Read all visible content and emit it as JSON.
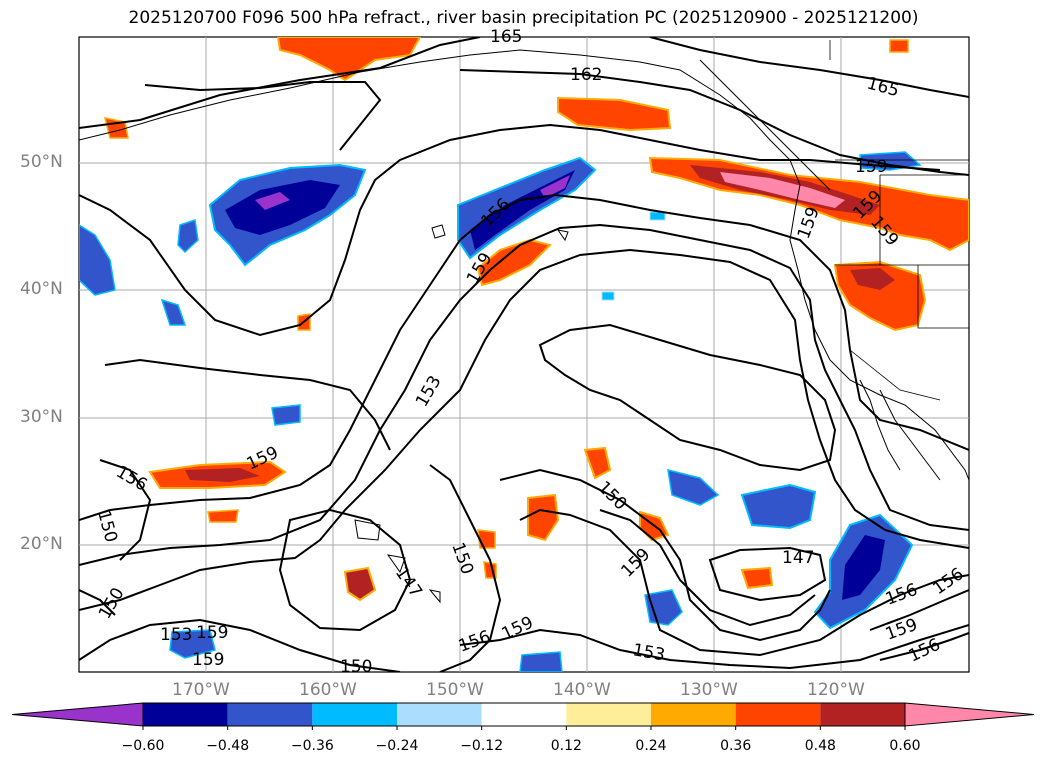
{
  "title": "2025120700 F096 500 hPa refract., river basin precipitation PC (2025120900 - 2025121200)",
  "map": {
    "lat_labels": [
      "50°N",
      "40°N",
      "30°N",
      "20°N"
    ],
    "lon_labels": [
      "170°W",
      "160°W",
      "150°W",
      "140°W",
      "130°W",
      "120°W"
    ],
    "contour_labels": [
      "165",
      "162",
      "165",
      "159",
      "159",
      "156",
      "159",
      "153",
      "156",
      "159",
      "150",
      "150",
      "150",
      "147",
      "159",
      "147",
      "159",
      "150",
      "156",
      "159",
      "153",
      "156",
      "159",
      "153",
      "150",
      "156",
      "159",
      "156",
      "159",
      "159"
    ],
    "contour_interval_note": ""
  },
  "colorbar": {
    "tick_labels": [
      "−0.60",
      "−0.48",
      "−0.36",
      "−0.24",
      "−0.12",
      "0.12",
      "0.24",
      "0.36",
      "0.48",
      "0.60"
    ],
    "colors": [
      "#9933cc",
      "#000099",
      "#3355cc",
      "#00bbff",
      "#aaddff",
      "#ffffff",
      "#ffee99",
      "#ffaa00",
      "#ff4400",
      "#b22222",
      "#ff88aa"
    ],
    "extend": "both"
  }
}
